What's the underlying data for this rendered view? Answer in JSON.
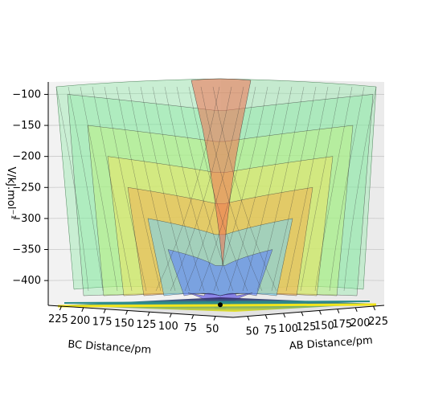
{
  "chart_data": {
    "type": "surface3d",
    "title": "",
    "zlabel": "V/kJ.mol⁻¹",
    "xlabel": "BC Distance/pm",
    "ylabel": "AB Distance/pm",
    "z_ticks": [
      -100,
      -150,
      -200,
      -250,
      -300,
      -350,
      -400
    ],
    "zlim": [
      -440,
      -80
    ],
    "bc_ticks": [
      225,
      200,
      175,
      150,
      125,
      100,
      75,
      50
    ],
    "ab_ticks": [
      50,
      75,
      100,
      125,
      150,
      175,
      200,
      225
    ],
    "distance_range": [
      30,
      240
    ],
    "colormap": "jet-translucent",
    "contour_colormap": "viridis",
    "grid": true,
    "markers": [
      {
        "label": "",
        "z": -430,
        "color": "#000000"
      }
    ]
  }
}
